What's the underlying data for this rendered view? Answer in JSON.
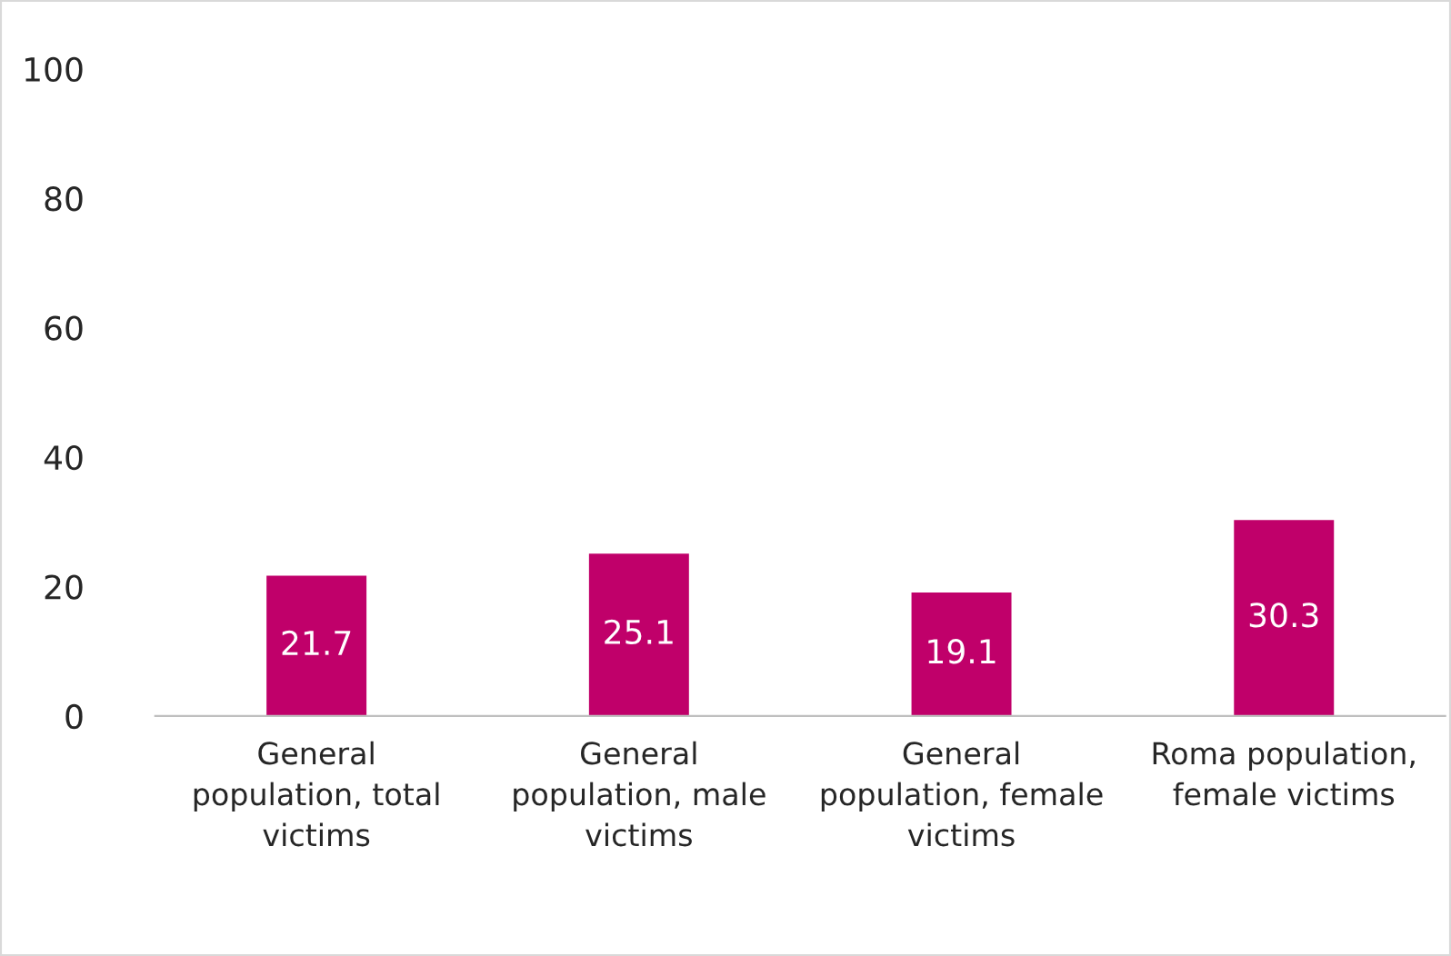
{
  "chart_data": {
    "type": "bar",
    "categories": [
      "General population, total victims",
      "General population, male victims",
      "General population, female victims",
      "Roma population, female victims"
    ],
    "values": [
      21.7,
      25.1,
      19.1,
      30.3
    ],
    "color": "#c0006a",
    "ylim": [
      0,
      100
    ],
    "yticks": [
      0,
      20,
      40,
      60,
      80,
      100
    ],
    "data_labels": true,
    "grid": false,
    "legend": false
  }
}
